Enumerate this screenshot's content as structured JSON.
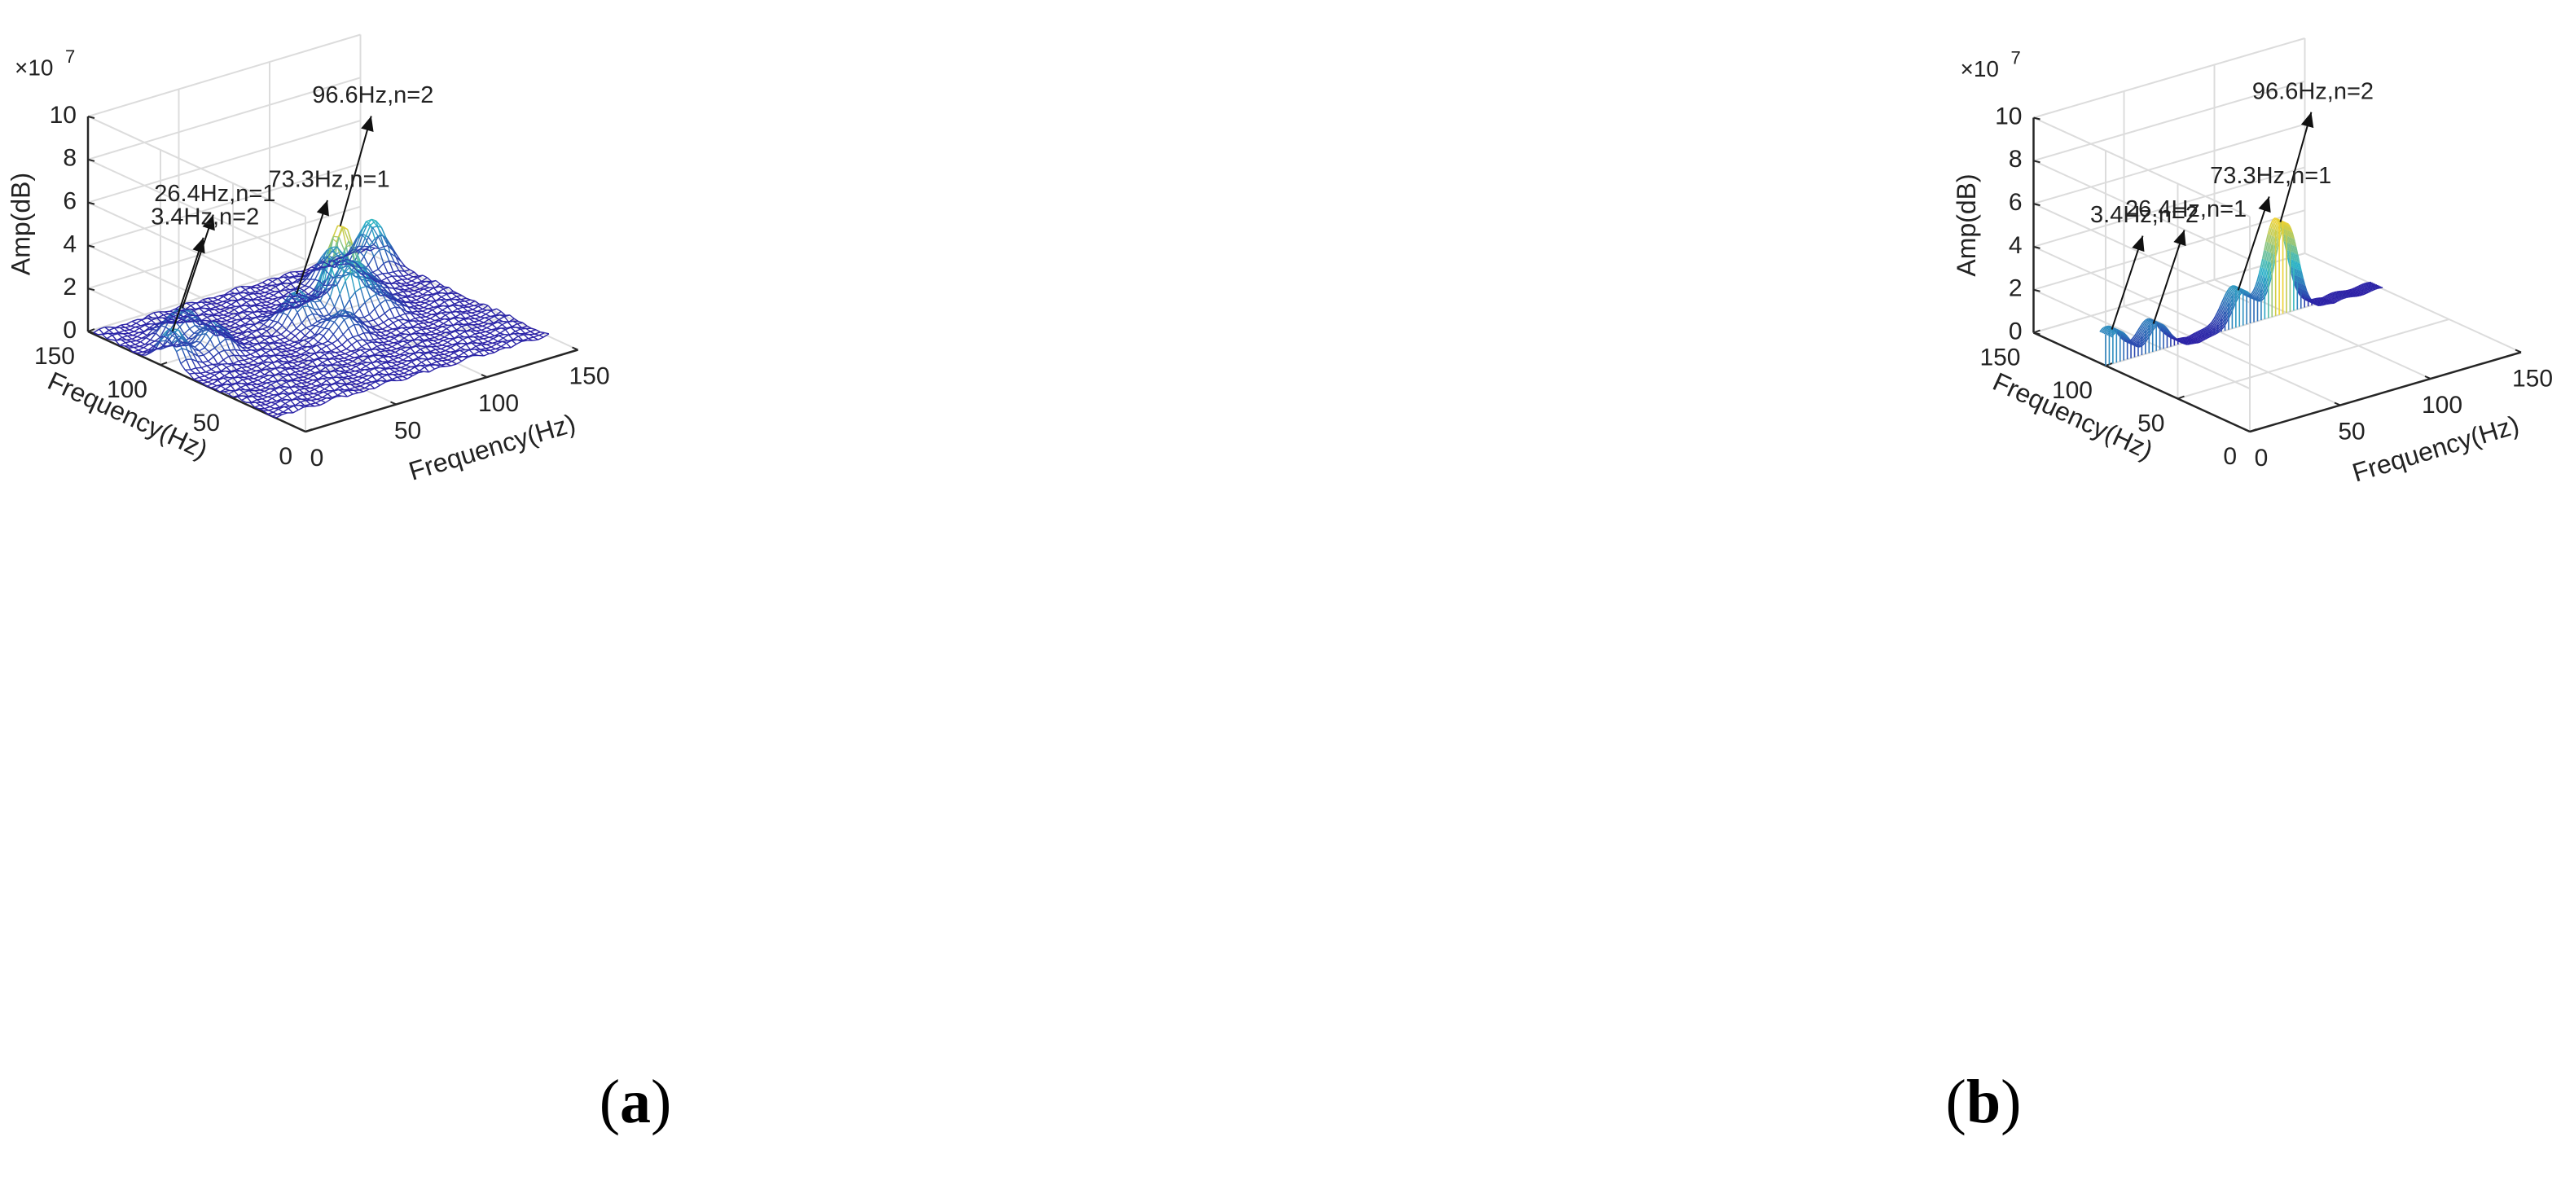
{
  "chart_data": [
    {
      "panel_label": "a",
      "type": "surface3d",
      "mesh_style": "wireframe",
      "zlabel": "Amp(dB)",
      "xlabel": "Frequency(Hz)",
      "ylabel": "Frequency(Hz)",
      "zscale": "×10^7",
      "zscale_base": "×10",
      "zscale_exp": "7",
      "ztick_labels": [
        "0",
        "2",
        "4",
        "6",
        "8",
        "10"
      ],
      "xtick_labels": [
        "0",
        "50",
        "100",
        "150"
      ],
      "ytick_labels": [
        "0",
        "50",
        "100",
        "150"
      ],
      "zlim": [
        0,
        10
      ],
      "xlim": [
        0,
        150
      ],
      "ylim": [
        0,
        150
      ],
      "grid": true,
      "colors": {
        "low": "#2c1fa6",
        "mid": "#2db6c8",
        "high": "#f6d32a"
      },
      "peaks": [
        {
          "f1": 97,
          "f2": 96.6,
          "amp": 4.1
        },
        {
          "f1": 130,
          "f2": 140,
          "amp": 2.2
        },
        {
          "f1": 125,
          "f2": 115,
          "amp": 1.6
        },
        {
          "f1": 108,
          "f2": 115,
          "amp": 1.5
        },
        {
          "f1": 86,
          "f2": 108,
          "amp": 1.2
        },
        {
          "f1": 98,
          "f2": 73.3,
          "amp": 1.5
        },
        {
          "f1": 75,
          "f2": 80,
          "amp": 1.2
        },
        {
          "f1": 96,
          "f2": 26.4,
          "amp": 1.3
        },
        {
          "f1": 118,
          "f2": 26.4,
          "amp": 1.4
        },
        {
          "f1": 96,
          "f2": 3.4,
          "amp": 1.6
        }
      ],
      "annotations": [
        {
          "text": "96.6Hz,n=2",
          "f1": 97,
          "f2": 96.6,
          "amp": 4.1
        },
        {
          "text": "73.3Hz,n=1",
          "f1": 98,
          "f2": 73.3,
          "amp": 1.5
        },
        {
          "text": "26.4Hz,n=1",
          "f1": 118,
          "f2": 26.4,
          "amp": 1.4
        },
        {
          "text": "3.4Hz,n=2",
          "f1": 96,
          "f2": 3.4,
          "amp": 1.6
        }
      ]
    },
    {
      "panel_label": "b",
      "type": "surface3d",
      "mesh_style": "slice",
      "slice_f1": 100,
      "zlabel": "Amp(dB)",
      "xlabel": "Frequency(Hz)",
      "ylabel": "Frequency(Hz)",
      "zscale": "×10^7",
      "zscale_base": "×10",
      "zscale_exp": "7",
      "ztick_labels": [
        "0",
        "2",
        "4",
        "6",
        "8",
        "10"
      ],
      "xtick_labels": [
        "0",
        "50",
        "100",
        "150"
      ],
      "ytick_labels": [
        "0",
        "50",
        "100",
        "150"
      ],
      "zlim": [
        0,
        10
      ],
      "xlim": [
        0,
        150
      ],
      "ylim": [
        0,
        150
      ],
      "grid": true,
      "colors": {
        "low": "#2c1fa6",
        "mid": "#2db6c8",
        "high": "#f6d32a"
      },
      "peaks": [
        {
          "f2": 96.6,
          "amp": 4.3
        },
        {
          "f2": 73.3,
          "amp": 1.7
        },
        {
          "f2": 26.4,
          "amp": 1.3
        },
        {
          "f2": 3.4,
          "amp": 1.6
        }
      ],
      "annotations": [
        {
          "text": "96.6Hz,n=2",
          "f2": 96.6,
          "amp": 4.3
        },
        {
          "text": "73.3Hz,n=1",
          "f2": 73.3,
          "amp": 1.7
        },
        {
          "text": "26.4Hz,n=1",
          "f2": 26.4,
          "amp": 1.3
        },
        {
          "text": "3.4Hz,n=2",
          "f2": 3.4,
          "amp": 1.6
        }
      ]
    }
  ]
}
